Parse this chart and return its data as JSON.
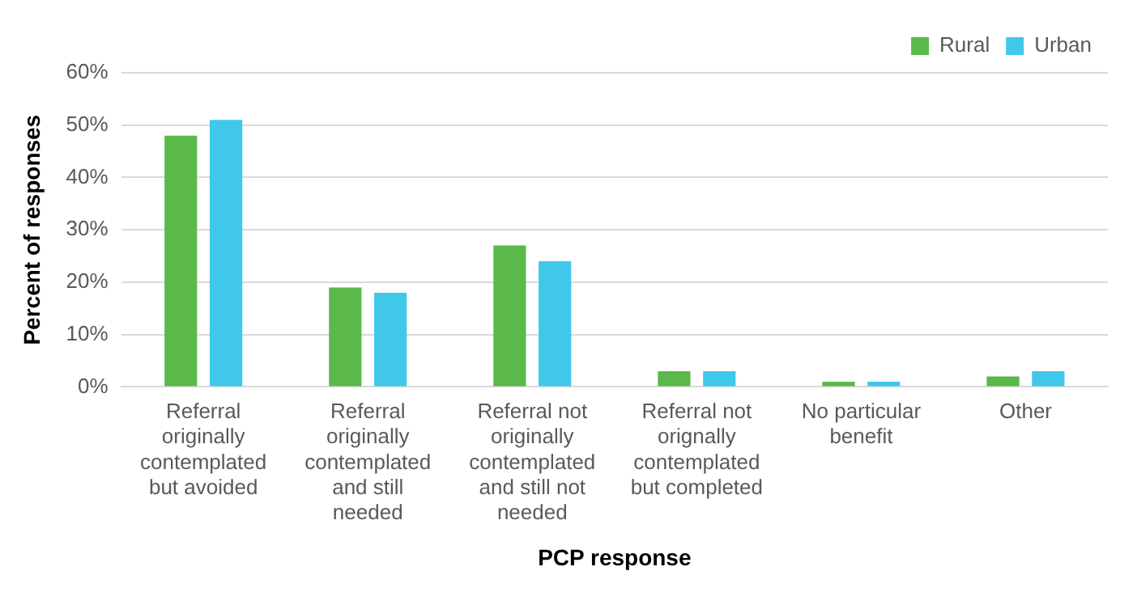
{
  "chart_data": {
    "type": "bar",
    "xlabel": "PCP response",
    "ylabel": "Percent of responses",
    "categories": [
      "Referral originally contemplated but avoided",
      "Referral originally contemplated and still needed",
      "Referral not originally contemplated and still not needed",
      "Referral not orignally contemplated but completed",
      "No particular benefit",
      "Other"
    ],
    "series": [
      {
        "name": "Rural",
        "color": "#5bb94a",
        "values": [
          48,
          19,
          27,
          3,
          1,
          2
        ]
      },
      {
        "name": "Urban",
        "color": "#3fc8ea",
        "values": [
          51,
          18,
          24,
          3,
          1,
          3
        ]
      }
    ],
    "ylim": [
      0,
      60
    ],
    "yticks": [
      {
        "value": 0,
        "label": "0%"
      },
      {
        "value": 10,
        "label": "10%"
      },
      {
        "value": 20,
        "label": "20%"
      },
      {
        "value": 30,
        "label": "30%"
      },
      {
        "value": 40,
        "label": "40%"
      },
      {
        "value": 50,
        "label": "50%"
      },
      {
        "value": 60,
        "label": "60%"
      }
    ],
    "grid": "y",
    "legend": "top right"
  }
}
